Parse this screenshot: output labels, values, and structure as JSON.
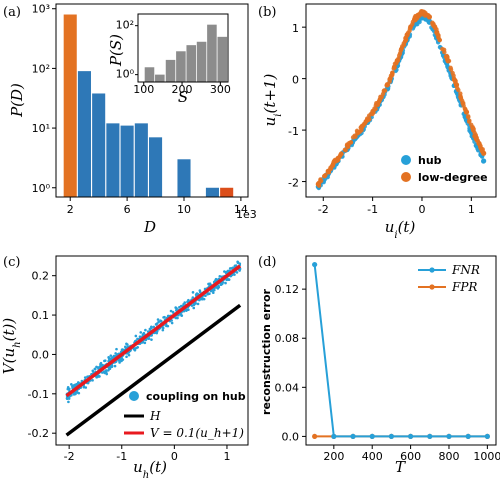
{
  "chart_data": [
    {
      "panel": "(a)",
      "type": "bar",
      "xlabel": "D",
      "ylabel": "P(D)",
      "y_scale": "log",
      "ylim": [
        0.7,
        1200
      ],
      "xlim": [
        1,
        14.5
      ],
      "x_ticks": [
        "2",
        "6",
        "10",
        "14"
      ],
      "y_ticks": [
        "10⁰",
        "10¹",
        "10²",
        "10³"
      ],
      "offset_label": "1e3",
      "bars": [
        {
          "x": 2,
          "value": 800,
          "color": "#E37222"
        },
        {
          "x": 3,
          "value": 90,
          "color": "#2E78B7"
        },
        {
          "x": 4,
          "value": 38,
          "color": "#2E78B7"
        },
        {
          "x": 5,
          "value": 12,
          "color": "#2E78B7"
        },
        {
          "x": 6,
          "value": 11,
          "color": "#2E78B7"
        },
        {
          "x": 7,
          "value": 12,
          "color": "#2E78B7"
        },
        {
          "x": 8,
          "value": 7,
          "color": "#2E78B7"
        },
        {
          "x": 10,
          "value": 3,
          "color": "#2E78B7"
        },
        {
          "x": 12,
          "value": 1,
          "color": "#2E78B7"
        },
        {
          "x": 13,
          "value": 1,
          "color": "#DB4E1A"
        }
      ],
      "inset": {
        "type": "bar",
        "xlabel": "S",
        "ylabel": "P(S)",
        "y_scale": "log",
        "x_ticks": [
          "100",
          "200",
          "300"
        ],
        "y_ticks": [
          "10⁰",
          "10²"
        ],
        "color": "#8C8C8C",
        "bars": [
          {
            "x": 115,
            "value": 2
          },
          {
            "x": 142,
            "value": 1
          },
          {
            "x": 170,
            "value": 4
          },
          {
            "x": 197,
            "value": 9
          },
          {
            "x": 224,
            "value": 16
          },
          {
            "x": 251,
            "value": 22
          },
          {
            "x": 278,
            "value": 110
          },
          {
            "x": 305,
            "value": 35
          }
        ]
      }
    },
    {
      "panel": "(b)",
      "type": "scatter",
      "xlabel": "u_i(t)",
      "ylabel": "u_i(t+1)",
      "xlim": [
        -2.35,
        1.5
      ],
      "ylim": [
        -2.3,
        1.45
      ],
      "x_ticks": [
        "-2",
        "-1",
        "0",
        "1"
      ],
      "y_ticks": [
        "-2",
        "-1",
        "0",
        "1"
      ],
      "legend_position": "lower-right",
      "series": [
        {
          "name": "hub",
          "color": "#27A0D8",
          "x": [
            -2.1,
            -1.9,
            -1.7,
            -1.5,
            -1.3,
            -1.1,
            -0.9,
            -0.7,
            -0.5,
            -0.3,
            -0.15,
            0,
            0.15,
            0.3,
            0.5,
            0.7,
            0.9,
            1.1,
            1.25
          ],
          "y": [
            -2.1,
            -1.85,
            -1.6,
            -1.35,
            -1.1,
            -0.85,
            -0.55,
            -0.2,
            0.25,
            0.75,
            1.05,
            1.2,
            1.1,
            0.8,
            0.3,
            -0.25,
            -0.8,
            -1.3,
            -1.6
          ]
        },
        {
          "name": "low-degree",
          "color": "#E37222",
          "x": [
            -2.1,
            -1.9,
            -1.7,
            -1.5,
            -1.3,
            -1.1,
            -0.9,
            -0.7,
            -0.5,
            -0.3,
            -0.15,
            0,
            0.15,
            0.3,
            0.5,
            0.7,
            0.9,
            1.1,
            1.25
          ],
          "y": [
            -2.05,
            -1.8,
            -1.55,
            -1.3,
            -1.05,
            -0.8,
            -0.5,
            -0.12,
            0.35,
            0.85,
            1.15,
            1.3,
            1.2,
            0.9,
            0.42,
            -0.12,
            -0.65,
            -1.15,
            -1.45
          ]
        }
      ]
    },
    {
      "panel": "(c)",
      "type": "scatter",
      "xlabel": "u_h(t)",
      "ylabel": "V(u_h(t))",
      "xlim": [
        -2.25,
        1.4
      ],
      "ylim": [
        -0.23,
        0.25
      ],
      "x_ticks": [
        "-2",
        "-1",
        "0",
        "1"
      ],
      "y_ticks": [
        "-0.2",
        "-0.1",
        "0.0",
        "0.1",
        "0.2"
      ],
      "legend_position": "lower-right",
      "series": [
        {
          "name": "coupling on hub",
          "color": "#27A0D8",
          "x": [
            -2,
            -1.8,
            -1.6,
            -1.4,
            -1.2,
            -1,
            -0.8,
            -0.6,
            -0.4,
            -0.2,
            0,
            0.2,
            0.4,
            0.6,
            0.8,
            1,
            1.2
          ],
          "y": [
            -0.1,
            -0.08,
            -0.06,
            -0.04,
            -0.02,
            0,
            0.02,
            0.04,
            0.06,
            0.08,
            0.1,
            0.12,
            0.14,
            0.16,
            0.18,
            0.2,
            0.22
          ]
        },
        {
          "name": "H",
          "type": "line",
          "color": "#000000",
          "x": [
            -2.05,
            1.25
          ],
          "y": [
            -0.205,
            0.125
          ]
        },
        {
          "name": "V = 0.1(u_h+1)",
          "type": "line",
          "color": "#E8191F",
          "x": [
            -2.05,
            1.25
          ],
          "y": [
            -0.105,
            0.225
          ]
        }
      ]
    },
    {
      "panel": "(d)",
      "type": "line",
      "xlabel": "T",
      "ylabel": "reconstruction error",
      "xlim": [
        55,
        1045
      ],
      "ylim": [
        -0.007,
        0.147
      ],
      "x_ticks": [
        "200",
        "600",
        "1000"
      ],
      "y_ticks": [
        "0.0",
        "0.04",
        "0.08",
        "0.12"
      ],
      "legend_position": "upper-right",
      "x": [
        100,
        200,
        300,
        400,
        500,
        600,
        700,
        800,
        900,
        1000
      ],
      "series": [
        {
          "name": "FNR",
          "color": "#27A0D8",
          "values": [
            0.14,
            0,
            0,
            0,
            0,
            0,
            0,
            0,
            0,
            0
          ]
        },
        {
          "name": "FPR",
          "color": "#E37222",
          "values": [
            0,
            0,
            0,
            0,
            0,
            0,
            0,
            0,
            0,
            0
          ]
        }
      ]
    }
  ]
}
